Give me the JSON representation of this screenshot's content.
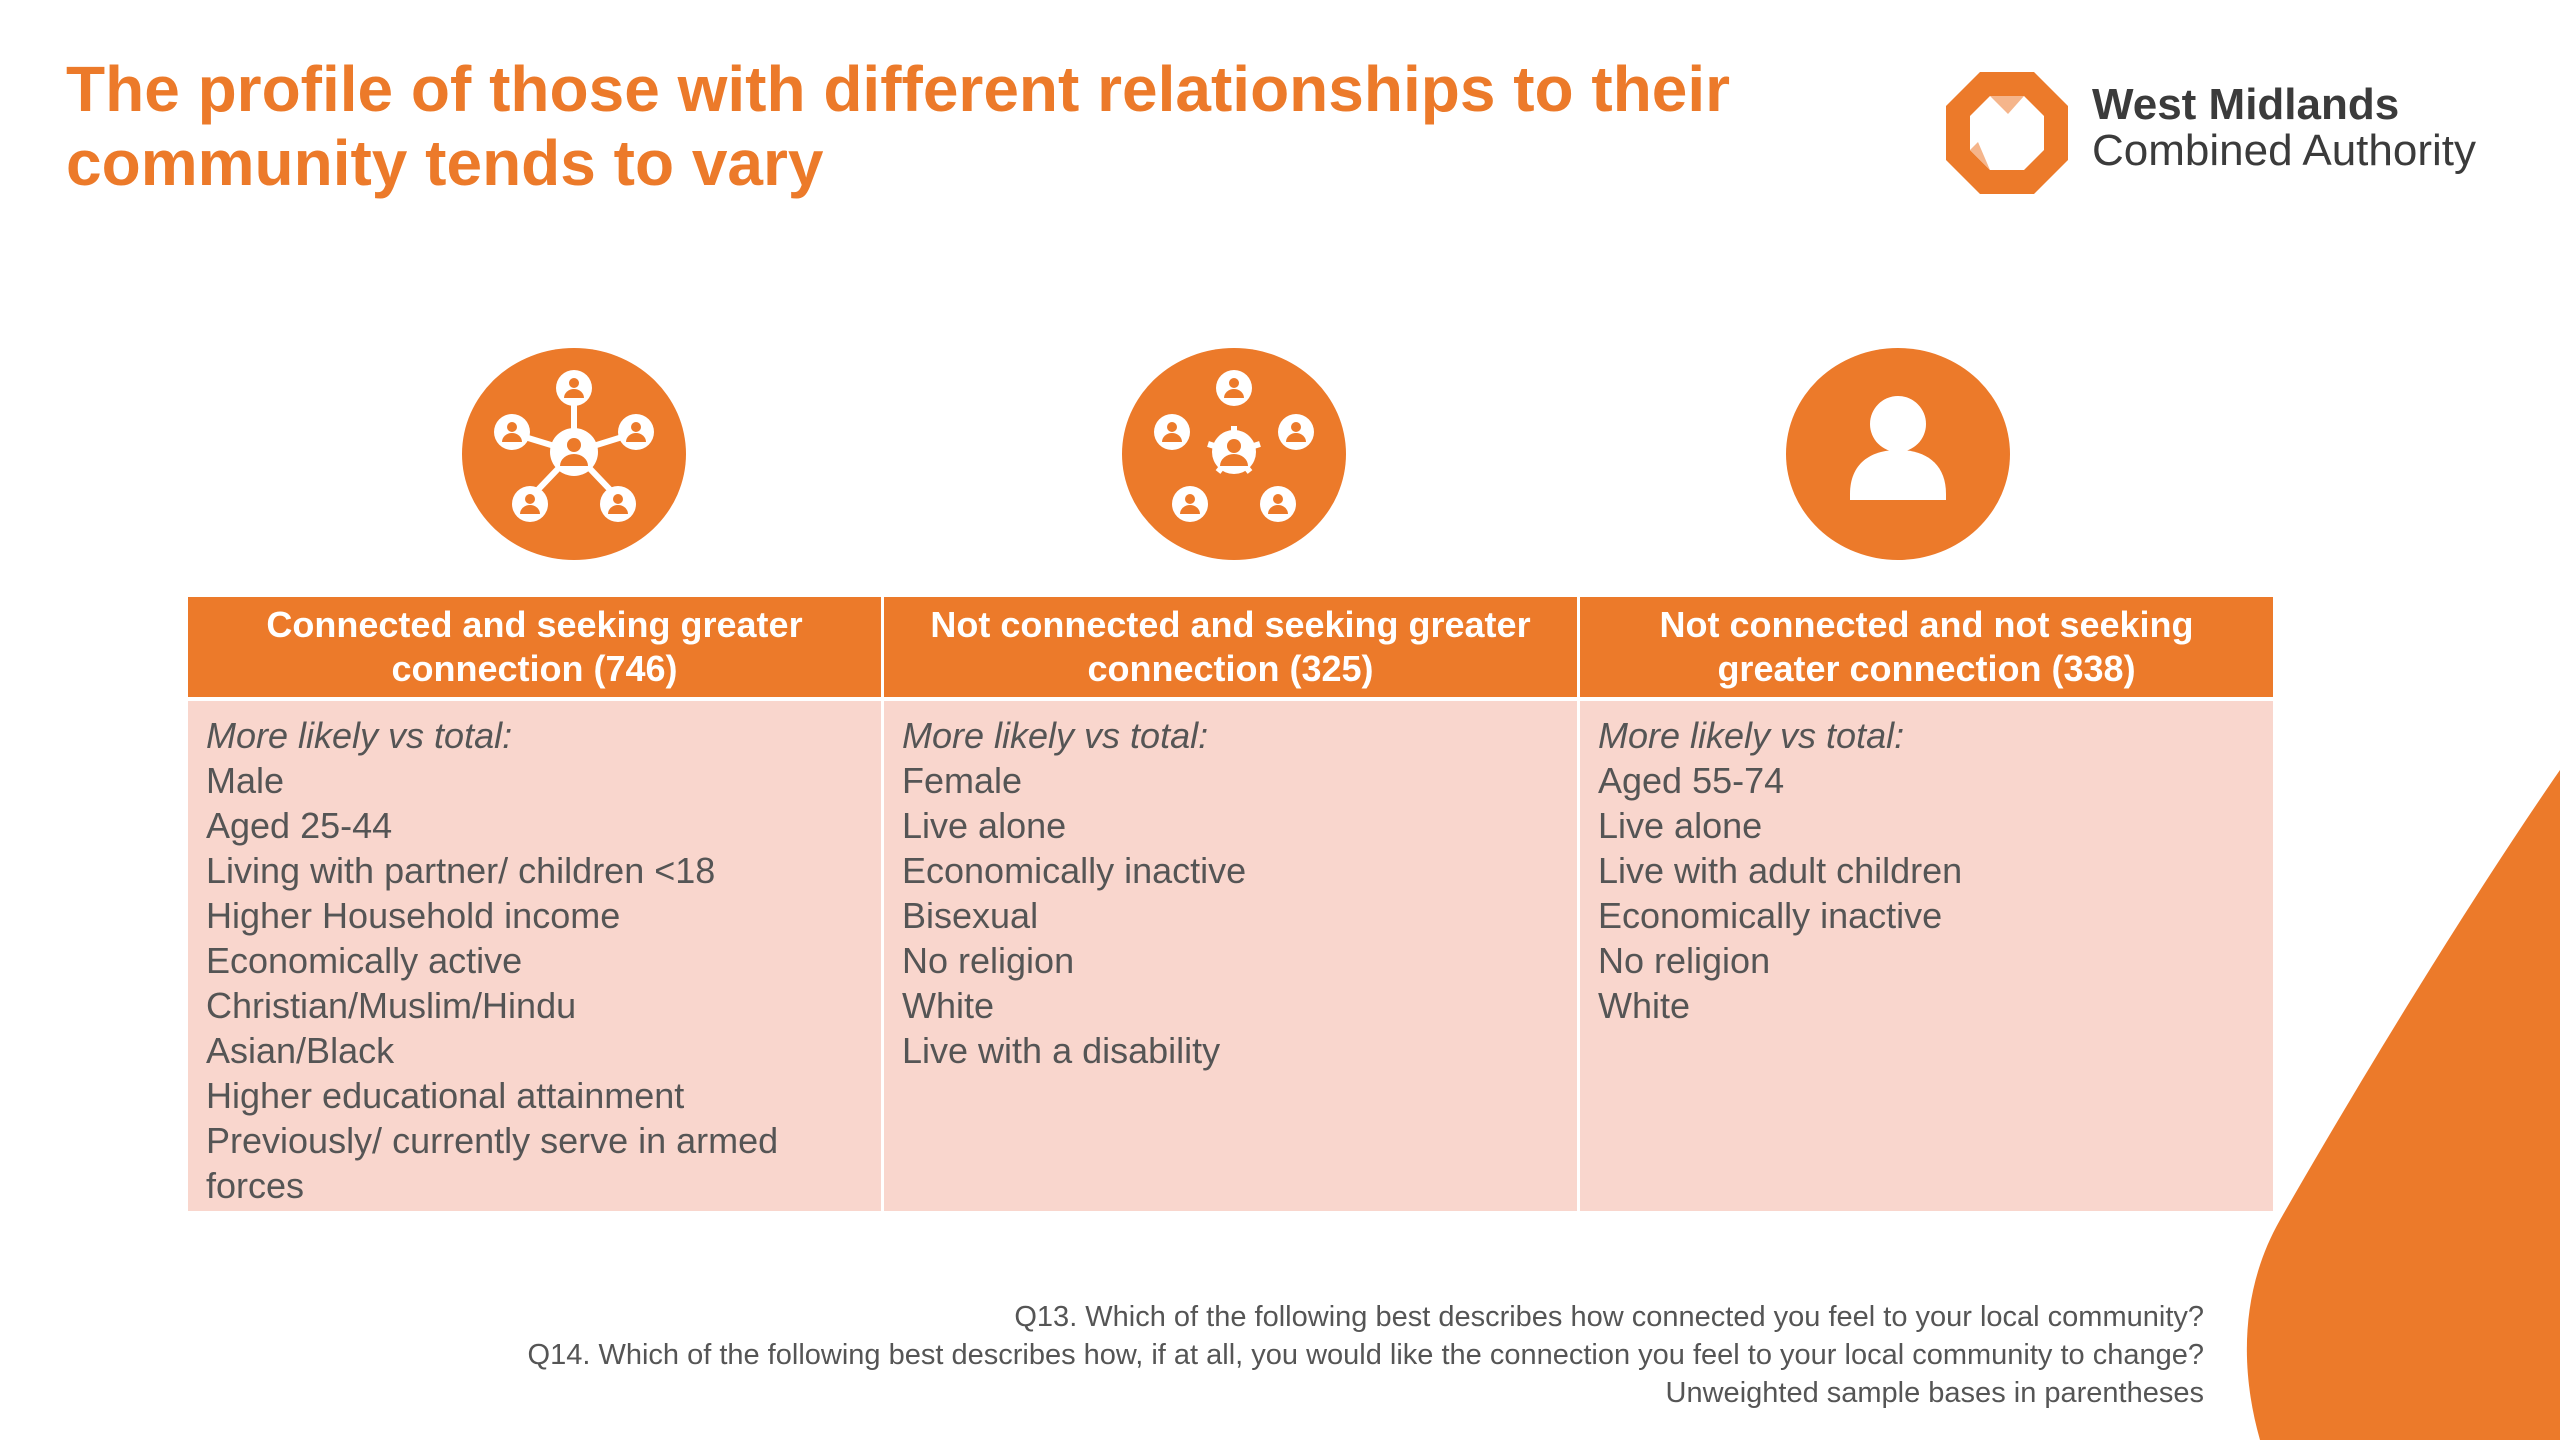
{
  "title": "The profile of those with different relationships to their community tends to vary",
  "logo": {
    "line1": "West Midlands",
    "line2": "Combined Authority",
    "icon": "octagon-ring-logo"
  },
  "colors": {
    "accent": "#ec7a2a",
    "body_fill": "#f9d6cd",
    "text": "#555555"
  },
  "columns": [
    {
      "icon": "network-group-icon",
      "header": "Connected and seeking greater connection (746)",
      "lead": "More likely vs total:",
      "items": [
        "Male",
        "Aged 25-44",
        "Living with partner/ children <18",
        "Higher Household income",
        "Economically active",
        "Christian/Muslim/Hindu",
        "Asian/Black",
        "Higher educational attainment",
        "Previously/ currently serve in armed forces"
      ]
    },
    {
      "icon": "broken-network-icon",
      "header": "Not connected and seeking greater connection (325)",
      "lead": "More likely vs total:",
      "items": [
        "Female",
        "Live alone",
        "Economically inactive",
        "Bisexual",
        "No religion",
        "White",
        "Live with a disability"
      ]
    },
    {
      "icon": "single-person-icon",
      "header": "Not connected and not seeking greater connection (338)",
      "lead": "More likely vs total:",
      "items": [
        "Aged 55-74",
        "Live alone",
        "Live with adult children",
        "Economically inactive",
        "No religion",
        "White"
      ]
    }
  ],
  "footnotes": [
    "Q13. Which of the following best describes how connected you feel to your local community?",
    "Q14. Which of the following best describes how, if at all, you would like the connection you feel to your local community to change?",
    "Unweighted sample bases in parentheses"
  ]
}
